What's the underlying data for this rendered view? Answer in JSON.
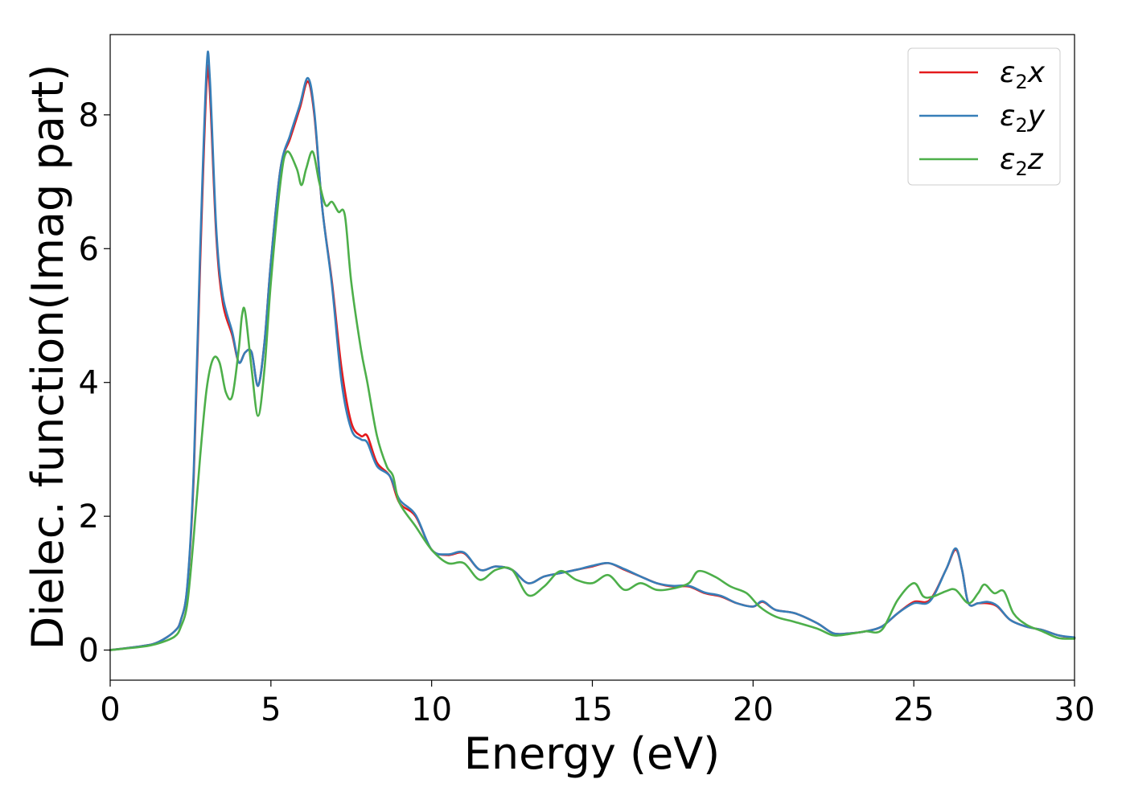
{
  "chart_data": {
    "type": "line",
    "title": "",
    "xlabel": "Energy (eV)",
    "ylabel": "Dielec. function(Imag part)",
    "xlim": [
      0,
      30
    ],
    "ylim": [
      -0.45,
      9.2
    ],
    "xticks": [
      0,
      5,
      10,
      15,
      20,
      25,
      30
    ],
    "yticks": [
      0,
      2,
      4,
      6,
      8
    ],
    "grid": false,
    "legend": {
      "placement": "top-right",
      "entries": [
        {
          "symbol": "ε",
          "sub": "2",
          "axis": "x"
        },
        {
          "symbol": "ε",
          "sub": "2",
          "axis": "y"
        },
        {
          "symbol": "ε",
          "sub": "2",
          "axis": "z"
        }
      ]
    },
    "series": [
      {
        "name": "ε2x",
        "color": "#e41a1c",
        "points": [
          [
            0,
            0.0
          ],
          [
            1.0,
            0.06
          ],
          [
            1.5,
            0.12
          ],
          [
            2.0,
            0.28
          ],
          [
            2.2,
            0.45
          ],
          [
            2.4,
            0.95
          ],
          [
            2.6,
            2.6
          ],
          [
            2.8,
            5.8
          ],
          [
            3.0,
            8.5
          ],
          [
            3.1,
            8.35
          ],
          [
            3.3,
            6.2
          ],
          [
            3.5,
            5.2
          ],
          [
            3.8,
            4.7
          ],
          [
            4.0,
            4.3
          ],
          [
            4.2,
            4.45
          ],
          [
            4.4,
            4.45
          ],
          [
            4.6,
            3.95
          ],
          [
            4.8,
            4.6
          ],
          [
            5.0,
            5.8
          ],
          [
            5.3,
            7.2
          ],
          [
            5.6,
            7.65
          ],
          [
            5.9,
            8.1
          ],
          [
            6.15,
            8.5
          ],
          [
            6.35,
            8.0
          ],
          [
            6.6,
            6.6
          ],
          [
            6.9,
            5.5
          ],
          [
            7.2,
            4.2
          ],
          [
            7.5,
            3.4
          ],
          [
            7.8,
            3.2
          ],
          [
            8.0,
            3.2
          ],
          [
            8.3,
            2.8
          ],
          [
            8.7,
            2.6
          ],
          [
            9.0,
            2.2
          ],
          [
            9.5,
            2.0
          ],
          [
            10.0,
            1.5
          ],
          [
            10.5,
            1.42
          ],
          [
            11.0,
            1.45
          ],
          [
            11.5,
            1.2
          ],
          [
            12.0,
            1.25
          ],
          [
            12.5,
            1.2
          ],
          [
            13.0,
            1.0
          ],
          [
            13.5,
            1.1
          ],
          [
            14.0,
            1.15
          ],
          [
            14.5,
            1.2
          ],
          [
            15.0,
            1.25
          ],
          [
            15.5,
            1.3
          ],
          [
            16.0,
            1.2
          ],
          [
            16.5,
            1.1
          ],
          [
            17.0,
            1.0
          ],
          [
            17.5,
            0.95
          ],
          [
            18.0,
            0.95
          ],
          [
            18.5,
            0.85
          ],
          [
            19.0,
            0.8
          ],
          [
            19.5,
            0.7
          ],
          [
            20.0,
            0.65
          ],
          [
            20.3,
            0.72
          ],
          [
            20.7,
            0.6
          ],
          [
            21.3,
            0.55
          ],
          [
            22.0,
            0.4
          ],
          [
            22.5,
            0.25
          ],
          [
            23.0,
            0.25
          ],
          [
            23.5,
            0.28
          ],
          [
            24.0,
            0.35
          ],
          [
            24.5,
            0.55
          ],
          [
            25.0,
            0.72
          ],
          [
            25.5,
            0.75
          ],
          [
            26.0,
            1.2
          ],
          [
            26.3,
            1.5
          ],
          [
            26.5,
            1.2
          ],
          [
            26.7,
            0.7
          ],
          [
            27.0,
            0.7
          ],
          [
            27.3,
            0.7
          ],
          [
            27.6,
            0.65
          ],
          [
            28.0,
            0.45
          ],
          [
            28.5,
            0.35
          ],
          [
            29.0,
            0.3
          ],
          [
            29.5,
            0.22
          ],
          [
            30.0,
            0.18
          ]
        ]
      },
      {
        "name": "ε2y",
        "color": "#377eb8",
        "points": [
          [
            0,
            0.0
          ],
          [
            1.0,
            0.06
          ],
          [
            1.5,
            0.12
          ],
          [
            2.0,
            0.28
          ],
          [
            2.2,
            0.45
          ],
          [
            2.4,
            0.97
          ],
          [
            2.6,
            2.7
          ],
          [
            2.8,
            6.0
          ],
          [
            3.0,
            8.7
          ],
          [
            3.1,
            8.55
          ],
          [
            3.3,
            6.3
          ],
          [
            3.5,
            5.3
          ],
          [
            3.8,
            4.75
          ],
          [
            4.0,
            4.3
          ],
          [
            4.2,
            4.45
          ],
          [
            4.4,
            4.45
          ],
          [
            4.6,
            3.95
          ],
          [
            4.8,
            4.6
          ],
          [
            5.0,
            5.8
          ],
          [
            5.3,
            7.2
          ],
          [
            5.6,
            7.7
          ],
          [
            5.9,
            8.15
          ],
          [
            6.15,
            8.55
          ],
          [
            6.35,
            8.05
          ],
          [
            6.6,
            6.6
          ],
          [
            6.9,
            5.45
          ],
          [
            7.2,
            4.0
          ],
          [
            7.5,
            3.3
          ],
          [
            7.8,
            3.15
          ],
          [
            8.0,
            3.1
          ],
          [
            8.3,
            2.75
          ],
          [
            8.7,
            2.6
          ],
          [
            9.0,
            2.25
          ],
          [
            9.5,
            2.02
          ],
          [
            10.0,
            1.5
          ],
          [
            10.5,
            1.43
          ],
          [
            11.0,
            1.46
          ],
          [
            11.5,
            1.2
          ],
          [
            12.0,
            1.25
          ],
          [
            12.5,
            1.2
          ],
          [
            13.0,
            1.0
          ],
          [
            13.5,
            1.1
          ],
          [
            14.0,
            1.15
          ],
          [
            14.5,
            1.2
          ],
          [
            15.0,
            1.26
          ],
          [
            15.5,
            1.3
          ],
          [
            16.0,
            1.21
          ],
          [
            16.5,
            1.1
          ],
          [
            17.0,
            1.0
          ],
          [
            17.5,
            0.96
          ],
          [
            18.0,
            0.96
          ],
          [
            18.5,
            0.86
          ],
          [
            19.0,
            0.81
          ],
          [
            19.5,
            0.7
          ],
          [
            20.0,
            0.65
          ],
          [
            20.3,
            0.73
          ],
          [
            20.7,
            0.6
          ],
          [
            21.3,
            0.55
          ],
          [
            22.0,
            0.4
          ],
          [
            22.5,
            0.25
          ],
          [
            23.0,
            0.25
          ],
          [
            23.5,
            0.28
          ],
          [
            24.0,
            0.35
          ],
          [
            24.5,
            0.55
          ],
          [
            25.0,
            0.7
          ],
          [
            25.5,
            0.73
          ],
          [
            26.0,
            1.2
          ],
          [
            26.3,
            1.52
          ],
          [
            26.5,
            1.2
          ],
          [
            26.7,
            0.7
          ],
          [
            27.0,
            0.7
          ],
          [
            27.3,
            0.72
          ],
          [
            27.6,
            0.66
          ],
          [
            28.0,
            0.45
          ],
          [
            28.5,
            0.35
          ],
          [
            29.0,
            0.3
          ],
          [
            29.5,
            0.22
          ],
          [
            30.0,
            0.19
          ]
        ]
      },
      {
        "name": "ε2z",
        "color": "#4daf4a",
        "points": [
          [
            0,
            0.0
          ],
          [
            1.0,
            0.05
          ],
          [
            1.5,
            0.1
          ],
          [
            2.0,
            0.2
          ],
          [
            2.2,
            0.35
          ],
          [
            2.4,
            0.7
          ],
          [
            2.6,
            1.7
          ],
          [
            2.8,
            2.9
          ],
          [
            3.0,
            3.9
          ],
          [
            3.2,
            4.35
          ],
          [
            3.4,
            4.3
          ],
          [
            3.6,
            3.85
          ],
          [
            3.8,
            3.8
          ],
          [
            4.0,
            4.5
          ],
          [
            4.1,
            5.0
          ],
          [
            4.2,
            5.05
          ],
          [
            4.4,
            4.2
          ],
          [
            4.6,
            3.5
          ],
          [
            4.8,
            4.2
          ],
          [
            5.0,
            5.5
          ],
          [
            5.3,
            7.0
          ],
          [
            5.5,
            7.45
          ],
          [
            5.8,
            7.2
          ],
          [
            5.95,
            6.95
          ],
          [
            6.1,
            7.2
          ],
          [
            6.3,
            7.45
          ],
          [
            6.5,
            7.0
          ],
          [
            6.7,
            6.65
          ],
          [
            6.9,
            6.7
          ],
          [
            7.1,
            6.55
          ],
          [
            7.3,
            6.5
          ],
          [
            7.5,
            5.5
          ],
          [
            7.8,
            4.5
          ],
          [
            8.0,
            4.0
          ],
          [
            8.3,
            3.2
          ],
          [
            8.6,
            2.75
          ],
          [
            8.8,
            2.6
          ],
          [
            9.0,
            2.2
          ],
          [
            9.5,
            1.85
          ],
          [
            10.0,
            1.5
          ],
          [
            10.5,
            1.3
          ],
          [
            11.0,
            1.3
          ],
          [
            11.5,
            1.05
          ],
          [
            12.0,
            1.2
          ],
          [
            12.5,
            1.2
          ],
          [
            13.0,
            0.82
          ],
          [
            13.5,
            0.95
          ],
          [
            14.0,
            1.18
          ],
          [
            14.5,
            1.05
          ],
          [
            15.0,
            1.0
          ],
          [
            15.5,
            1.12
          ],
          [
            16.0,
            0.9
          ],
          [
            16.5,
            1.0
          ],
          [
            17.0,
            0.9
          ],
          [
            17.5,
            0.92
          ],
          [
            18.0,
            1.0
          ],
          [
            18.3,
            1.18
          ],
          [
            18.8,
            1.1
          ],
          [
            19.3,
            0.95
          ],
          [
            19.8,
            0.85
          ],
          [
            20.2,
            0.65
          ],
          [
            20.7,
            0.5
          ],
          [
            21.3,
            0.42
          ],
          [
            22.0,
            0.32
          ],
          [
            22.5,
            0.22
          ],
          [
            23.0,
            0.24
          ],
          [
            23.5,
            0.28
          ],
          [
            24.0,
            0.3
          ],
          [
            24.5,
            0.75
          ],
          [
            25.0,
            1.0
          ],
          [
            25.3,
            0.8
          ],
          [
            25.6,
            0.8
          ],
          [
            26.0,
            0.88
          ],
          [
            26.3,
            0.9
          ],
          [
            26.7,
            0.7
          ],
          [
            27.0,
            0.85
          ],
          [
            27.2,
            0.98
          ],
          [
            27.5,
            0.85
          ],
          [
            27.8,
            0.88
          ],
          [
            28.1,
            0.55
          ],
          [
            28.5,
            0.38
          ],
          [
            29.0,
            0.28
          ],
          [
            29.5,
            0.18
          ],
          [
            30.0,
            0.17
          ]
        ]
      }
    ]
  }
}
